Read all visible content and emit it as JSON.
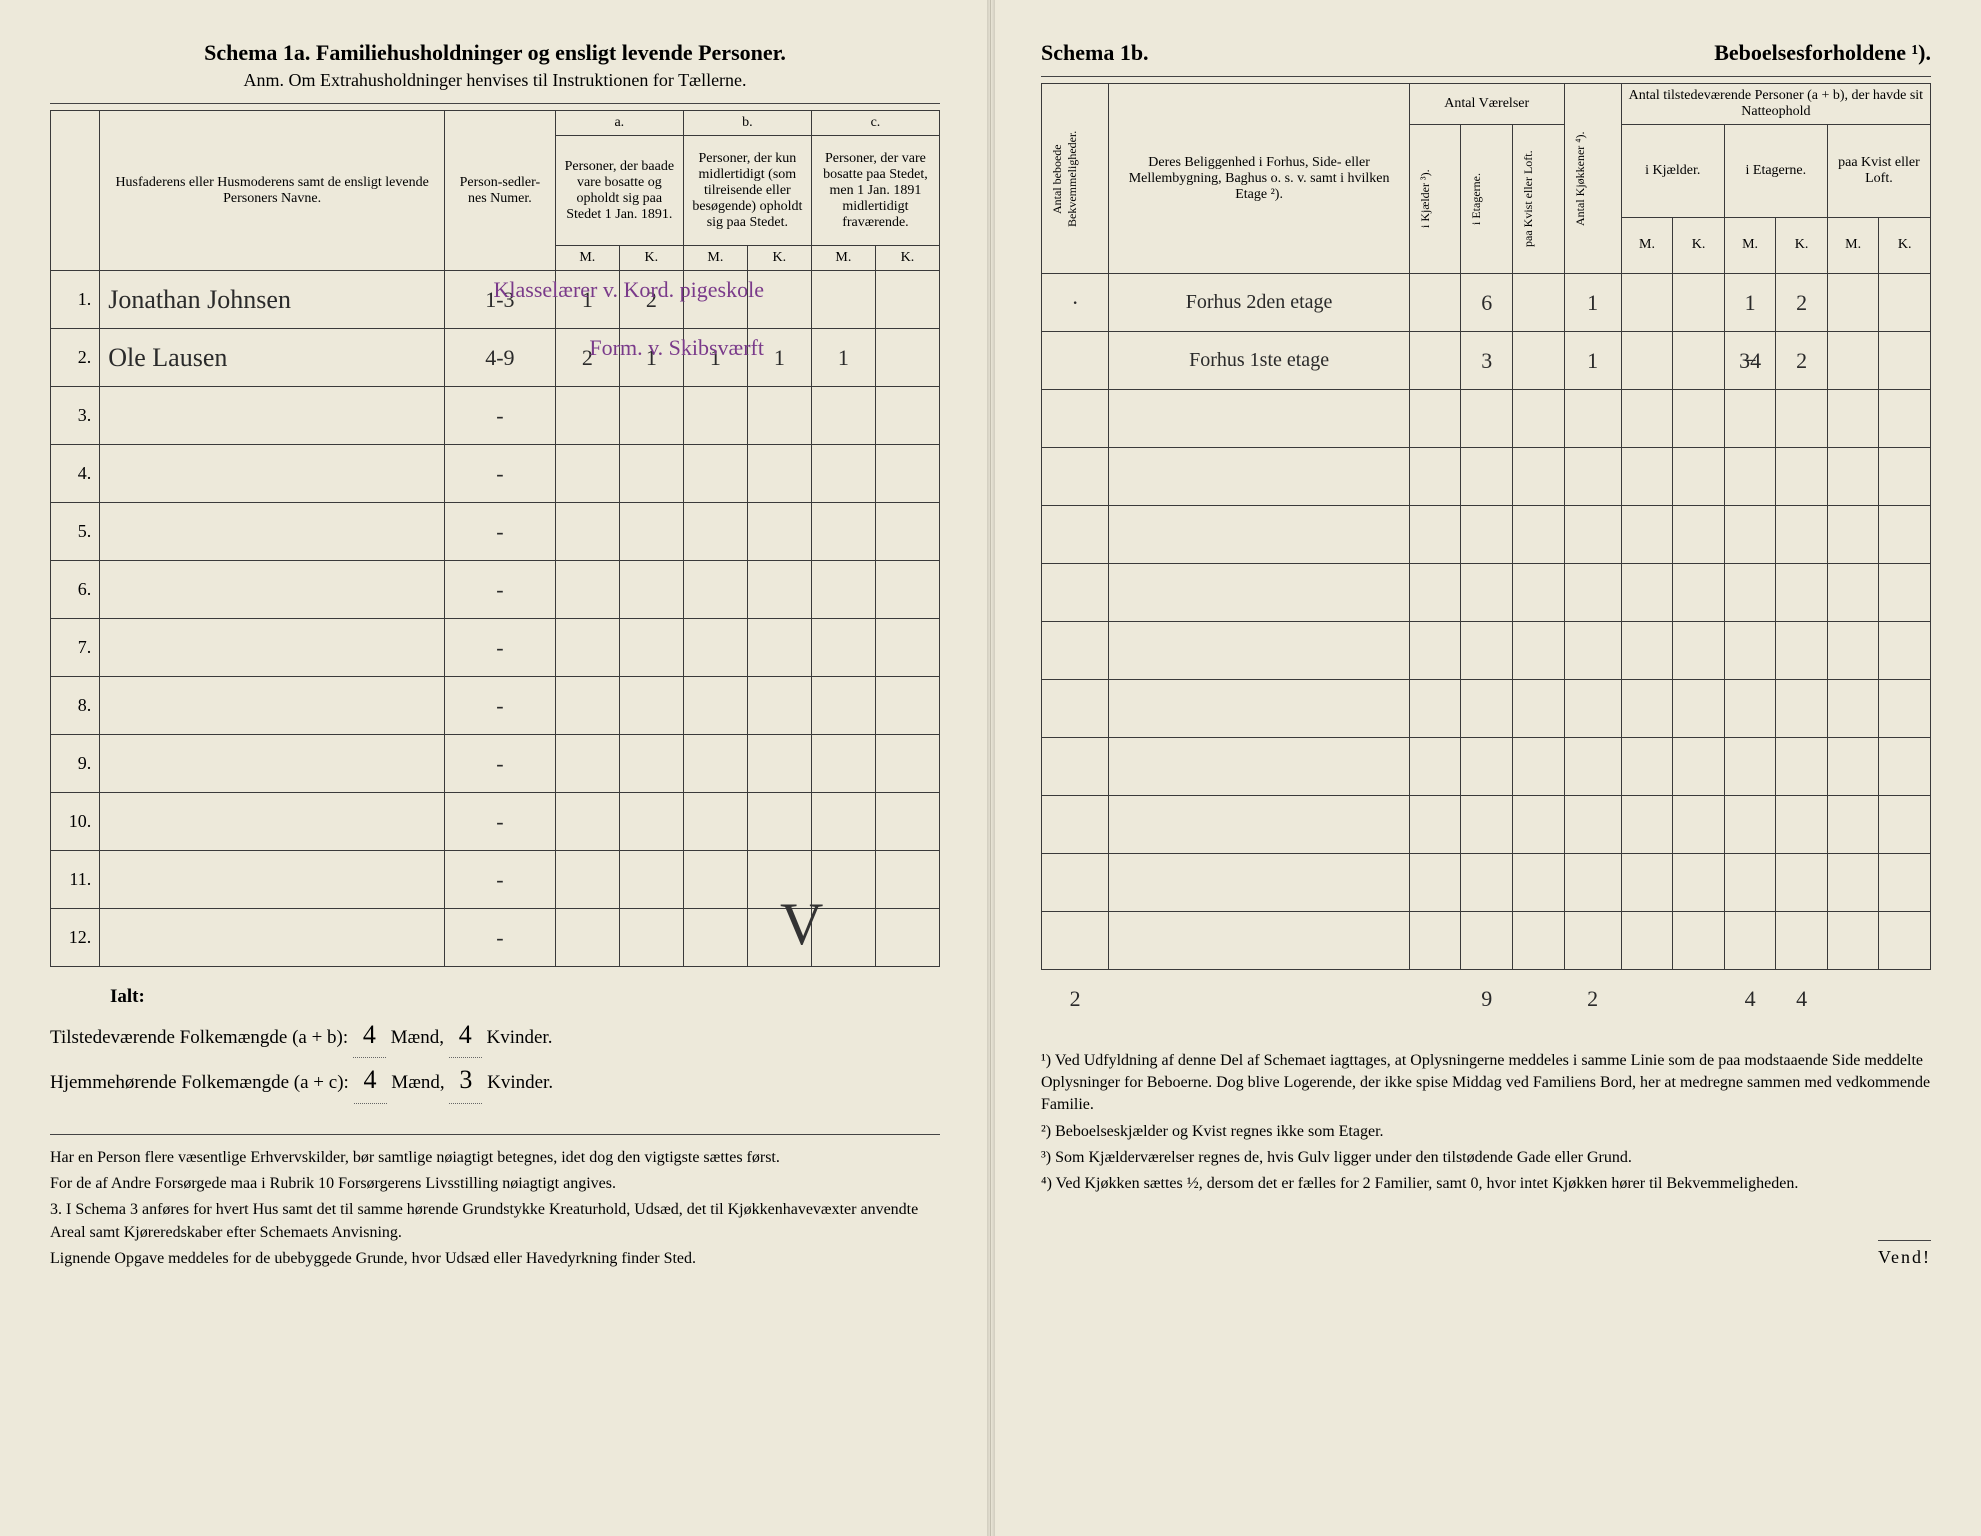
{
  "left": {
    "title": "Schema 1a.  Familiehusholdninger og ensligt levende Personer.",
    "subtitle": "Anm. Om Extrahusholdninger henvises til Instruktionen for Tællerne.",
    "headers": {
      "name": "Husfaderens eller Husmoderens samt de ensligt levende Personers Navne.",
      "numer": "Person-sedler-nes Numer.",
      "a_label": "a.",
      "a": "Personer, der baade vare bosatte og opholdt sig paa Stedet 1 Jan. 1891.",
      "b_label": "b.",
      "b": "Personer, der kun midlertidigt (som tilreisende eller besøgende) opholdt sig paa Stedet.",
      "c_label": "c.",
      "c": "Personer, der vare bosatte paa Stedet, men 1 Jan. 1891 midlertidigt fraværende.",
      "m": "M.",
      "k": "K."
    },
    "rows": [
      {
        "n": "1.",
        "name": "Jonathan Johnsen",
        "numer": "1-3",
        "am": "1",
        "ak": "2",
        "bm": "",
        "bk": "",
        "cm": "",
        "ck": "",
        "note": "Klasselærer v. Kord. pigeskole"
      },
      {
        "n": "2.",
        "name": "Ole Lausen",
        "numer": "4-9",
        "am": "2",
        "ak": "1",
        "bm": "1",
        "bk": "1",
        "cm": "1",
        "ck": "",
        "note": "Form. v. Skibsværft"
      },
      {
        "n": "3.",
        "numer": "-"
      },
      {
        "n": "4.",
        "numer": "-"
      },
      {
        "n": "5.",
        "numer": "-"
      },
      {
        "n": "6.",
        "numer": "-"
      },
      {
        "n": "7.",
        "numer": "-"
      },
      {
        "n": "8.",
        "numer": "-"
      },
      {
        "n": "9.",
        "numer": "-"
      },
      {
        "n": "10.",
        "numer": "-"
      },
      {
        "n": "11.",
        "numer": "-"
      },
      {
        "n": "12.",
        "numer": "-"
      }
    ],
    "summary": {
      "ialt": "Ialt:",
      "line1_a": "Tilstedeværende Folkemængde (a + b):",
      "line1_m": "4",
      "line1_mlabel": "Mænd,",
      "line1_k": "4",
      "line1_klabel": "Kvinder.",
      "line2_a": "Hjemmehørende Folkemængde (a + c):",
      "line2_m": "4",
      "line2_k": "3"
    },
    "notes": [
      "Har en Person flere væsentlige Erhvervskilder, bør samtlige nøiagtigt betegnes, idet dog den vigtigste sættes først.",
      "For de af Andre Forsørgede maa i Rubrik 10 Forsørgerens Livsstilling nøiagtigt angives.",
      "3. I Schema 3 anføres for hvert Hus samt det til samme hørende Grundstykke Kreaturhold, Udsæd, det til Kjøkkenhavevæxter anvendte Areal samt Kjøreredskaber efter Schemaets Anvisning.",
      "Lignende Opgave meddeles for de ubebyggede Grunde, hvor Udsæd eller Havedyrkning finder Sted."
    ]
  },
  "right": {
    "title_l": "Schema 1b.",
    "title_r": "Beboelsesforholdene ¹).",
    "headers": {
      "bekvem": "Antal beboede Bekvemmeligheder.",
      "belig": "Deres Beliggenhed i Forhus, Side- eller Mellembygning, Baghus o. s. v. samt i hvilken Etage ²).",
      "vaer": "Antal Værelser",
      "kjokken": "Antal Kjøkkener ⁴).",
      "tilstede": "Antal tilstedeværende Personer (a + b), der havde sit Natteophold",
      "kjael": "i Kjælder ³).",
      "etag": "i Etagerne.",
      "kvist": "paa Kvist eller Loft.",
      "ikjael": "i Kjælder.",
      "ietag": "i Etagerne.",
      "paakvist": "paa Kvist eller Loft.",
      "m": "M.",
      "k": "K."
    },
    "rows": [
      {
        "bekvem": "·",
        "belig": "Forhus 2den etage",
        "vk": "",
        "ve": "6",
        "vl": "",
        "kj": "1",
        "km": "",
        "kk": "",
        "em": "1",
        "ek": "2",
        "lm": "",
        "lk": ""
      },
      {
        "bekvem": "",
        "belig": "Forhus 1ste etage",
        "vk": "",
        "ve": "3",
        "vl": "",
        "kj": "1",
        "km": "",
        "kk": "",
        "em": "3̶4",
        "ek": "2",
        "lm": "",
        "lk": ""
      }
    ],
    "totals": {
      "bekvem": "2",
      "ve": "9",
      "kj": "2",
      "em": "4",
      "ek": "4"
    },
    "notes": [
      "¹) Ved Udfyldning af denne Del af Schemaet iagttages, at Oplysningerne meddeles i samme Linie som de paa modstaaende Side meddelte Oplysninger for Beboerne. Dog blive Logerende, der ikke spise Middag ved Familiens Bord, her at medregne sammen med vedkommende Familie.",
      "²) Beboelseskjælder og Kvist regnes ikke som Etager.",
      "³) Som Kjælderværelser regnes de, hvis Gulv ligger under den tilstødende Gade eller Grund.",
      "⁴) Ved Kjøkken sættes ½, dersom det er fælles for 2 Familier, samt 0, hvor intet Kjøkken hører til Bekvemmeligheden."
    ],
    "vend": "Vend!"
  }
}
